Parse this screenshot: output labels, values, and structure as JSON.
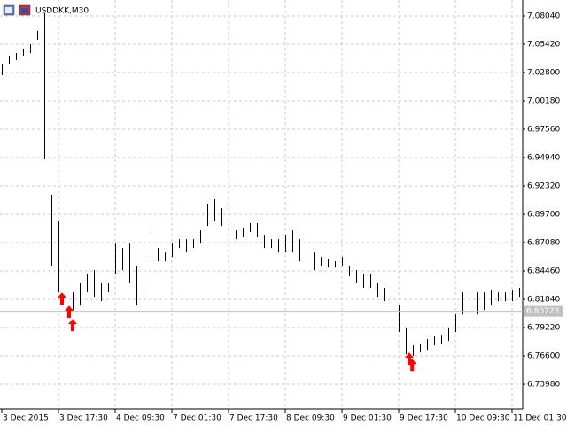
{
  "chart_data": {
    "type": "ohlc-range",
    "title": "USDDKK,M30",
    "grid": true,
    "color": "#000000",
    "xlim": [
      -0.25,
      73.5
    ],
    "ylim": [
      6.7169,
      7.0951
    ],
    "xticks": [
      {
        "value": 0,
        "label": "3 Dec 2015"
      },
      {
        "value": 8,
        "label": "3 Dec 17:30"
      },
      {
        "value": 16,
        "label": "4 Dec 09:30"
      },
      {
        "value": 24,
        "label": "7 Dec 01:30"
      },
      {
        "value": 32,
        "label": "7 Dec 17:30"
      },
      {
        "value": 40,
        "label": "8 Dec 09:30"
      },
      {
        "value": 48,
        "label": "9 Dec 01:30"
      },
      {
        "value": 56,
        "label": "9 Dec 17:30"
      },
      {
        "value": 64,
        "label": "10 Dec 09:30"
      },
      {
        "value": 72,
        "label": "11 Dec 01:30"
      }
    ],
    "yticks": [
      {
        "value": 7.0804,
        "label": "7.08040"
      },
      {
        "value": 7.0542,
        "label": "7.05420"
      },
      {
        "value": 7.028,
        "label": "7.02800"
      },
      {
        "value": 7.0018,
        "label": "7.00180"
      },
      {
        "value": 6.9756,
        "label": "6.97560"
      },
      {
        "value": 6.9494,
        "label": "6.94940"
      },
      {
        "value": 6.9232,
        "label": "6.92320"
      },
      {
        "value": 6.897,
        "label": "6.89700"
      },
      {
        "value": 6.8708,
        "label": "6.87080"
      },
      {
        "value": 6.8446,
        "label": "6.84460"
      },
      {
        "value": 6.8184,
        "label": "6.81840"
      },
      {
        "value": 6.7922,
        "label": "6.79220"
      },
      {
        "value": 6.766,
        "label": "6.76600"
      },
      {
        "value": 6.7398,
        "label": "6.73980"
      }
    ],
    "last_price": 6.80723,
    "high": [
      7.0362,
      7.0435,
      7.046,
      7.0501,
      7.0542,
      7.0665,
      7.0829,
      6.915,
      6.8904,
      6.8495,
      6.8249,
      6.8331,
      6.8413,
      6.8454,
      6.8331,
      6.8331,
      6.8699,
      6.8658,
      6.8699,
      6.8495,
      6.8576,
      6.8822,
      6.8658,
      6.8617,
      6.8699,
      6.874,
      6.874,
      6.874,
      6.8822,
      6.9068,
      6.9109,
      6.9027,
      6.8863,
      6.8822,
      6.8839,
      6.8888,
      6.8888,
      6.8781,
      6.874,
      6.874,
      6.8781,
      6.8822,
      6.874,
      6.8658,
      6.8617,
      6.8576,
      6.856,
      6.8535,
      6.8576,
      6.8495,
      6.8454,
      6.8413,
      6.8413,
      6.8331,
      6.829,
      6.8249,
      6.8126,
      6.7921,
      6.7757,
      6.7774,
      6.7815,
      6.7839,
      6.7856,
      6.7921,
      6.8044,
      6.8249,
      6.8249,
      6.8249,
      6.8249,
      6.8265,
      6.8249,
      6.8249,
      6.8265,
      6.829
    ],
    "low": [
      7.0255,
      7.0362,
      7.0395,
      7.0435,
      7.046,
      7.0583,
      6.9477,
      6.8495,
      6.8249,
      6.8167,
      6.8085,
      6.8126,
      6.8249,
      6.8208,
      6.8167,
      6.8249,
      6.8413,
      6.8454,
      6.8331,
      6.8126,
      6.8249,
      6.8576,
      6.8535,
      6.8535,
      6.8576,
      6.8658,
      6.8617,
      6.8658,
      6.8699,
      6.8863,
      6.8904,
      6.8863,
      6.874,
      6.874,
      6.8757,
      6.8806,
      6.8757,
      6.8658,
      6.8658,
      6.8617,
      6.8617,
      6.8617,
      6.8535,
      6.8454,
      6.8454,
      6.8495,
      6.8478,
      6.8478,
      6.8495,
      6.8396,
      6.8331,
      6.829,
      6.829,
      6.8208,
      6.8167,
      6.8003,
      6.788,
      6.7675,
      6.7659,
      6.7692,
      6.7716,
      6.7757,
      6.7774,
      6.7798,
      6.788,
      6.8044,
      6.8044,
      6.8044,
      6.8085,
      6.8126,
      6.8167,
      6.8167,
      6.8167,
      6.8208
    ],
    "signals": {
      "color": "#ff0000",
      "x": [
        8.5,
        9.5,
        10,
        57.5,
        57.9
      ],
      "values": [
        6.8249,
        6.8126,
        6.8003,
        6.7692,
        6.7634
      ]
    }
  }
}
